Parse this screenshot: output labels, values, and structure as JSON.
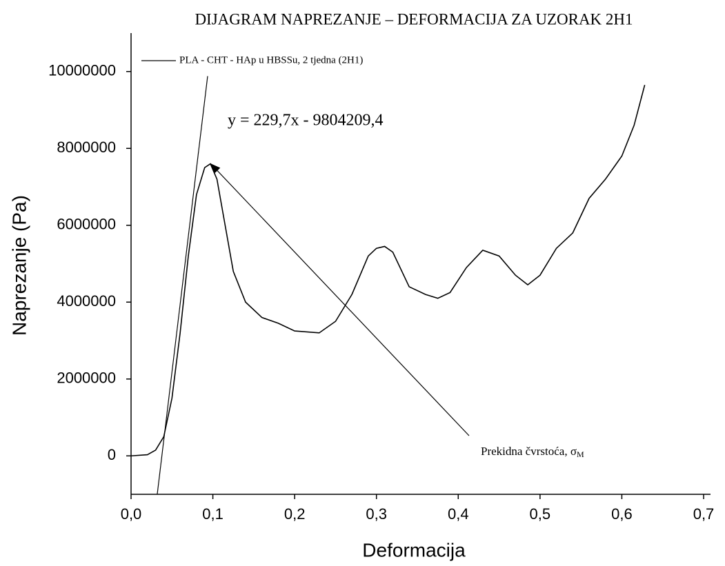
{
  "chart_data": {
    "type": "line",
    "title": "DIJAGRAM NAPREZANJE – DEFORMACIJA ZA UZORAK 2H1",
    "x_label": "Deformacija",
    "y_label": "Naprezanje (Pa)",
    "equation": "y = 229,7x - 9804209,4",
    "annotation": {
      "text": "Prekidna čvrstoća, σ",
      "subscript": "M"
    },
    "xlim": [
      0,
      0.7
    ],
    "ylim": [
      -1000000,
      11000000
    ],
    "xticks": [
      {
        "value": 0,
        "label": "0,0"
      },
      {
        "value": 0.1,
        "label": "0,1"
      },
      {
        "value": 0.2,
        "label": "0,2"
      },
      {
        "value": 0.3,
        "label": "0,3"
      },
      {
        "value": 0.4,
        "label": "0,4"
      },
      {
        "value": 0.5,
        "label": "0,5"
      },
      {
        "value": 0.6,
        "label": "0,6"
      },
      {
        "value": 0.7,
        "label": "0,7"
      }
    ],
    "yticks": [
      0,
      2000000,
      4000000,
      6000000,
      8000000,
      10000000
    ],
    "series": [
      {
        "name": "PLA - CHT - HAp u HBSSu, 2 tjedna (2H1)",
        "color": "#000000",
        "x": [
          0,
          0.02,
          0.03,
          0.04,
          0.05,
          0.06,
          0.07,
          0.08,
          0.09,
          0.097,
          0.105,
          0.115,
          0.125,
          0.14,
          0.16,
          0.18,
          0.2,
          0.23,
          0.25,
          0.27,
          0.29,
          0.3,
          0.31,
          0.32,
          0.34,
          0.36,
          0.375,
          0.39,
          0.41,
          0.43,
          0.45,
          0.47,
          0.485,
          0.5,
          0.52,
          0.54,
          0.56,
          0.58,
          0.6,
          0.615,
          0.628
        ],
        "values": [
          0,
          30000,
          150000,
          500000,
          1500000,
          3200000,
          5200000,
          6800000,
          7500000,
          7600000,
          7200000,
          6000000,
          4800000,
          4000000,
          3600000,
          3450000,
          3250000,
          3200000,
          3500000,
          4200000,
          5200000,
          5400000,
          5450000,
          5300000,
          4400000,
          4200000,
          4100000,
          4250000,
          4900000,
          5350000,
          5200000,
          4700000,
          4450000,
          4700000,
          5400000,
          5800000,
          6700000,
          7200000,
          7800000,
          8600000,
          9650000
        ]
      }
    ],
    "tangent": {
      "x": [
        0.032,
        0.0936
      ],
      "values": [
        -1000000,
        9880000
      ]
    }
  }
}
